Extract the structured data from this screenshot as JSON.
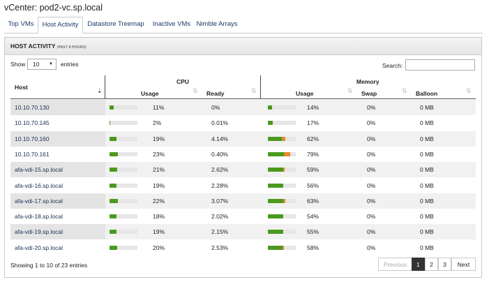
{
  "window": {
    "title": "vCenter: pod2-vc.sp.local"
  },
  "tabs": [
    {
      "label": "Top VMs",
      "active": false
    },
    {
      "label": "Host Activity",
      "active": true
    },
    {
      "label": "Datastore Treemap",
      "active": false
    },
    {
      "label": "Inactive VMs",
      "active": false
    },
    {
      "label": "Nimble Arrays",
      "active": false
    }
  ],
  "panel": {
    "title": "HOST ACTIVITY",
    "subtitle": "(PAST 8 HOURS)"
  },
  "controls": {
    "show_label": "Show",
    "page_size": "10",
    "entries_label": "entries",
    "search_label": "Search:",
    "search_value": ""
  },
  "columns": {
    "host": "Host",
    "cpu_group": "CPU",
    "memory_group": "Memory",
    "cpu_usage": "Usage",
    "cpu_ready": "Ready",
    "mem_usage": "Usage",
    "swap": "Swap",
    "balloon": "Balloon"
  },
  "rows": [
    {
      "host": "10.10.70.130",
      "cpu_usage": "11%",
      "cpu_ready": "0%",
      "mem_usage": "14%",
      "swap": "0%",
      "balloon": "0 MB",
      "cpu_pct": 11,
      "mem_pct": 14,
      "mem_orange_pct": 0
    },
    {
      "host": "10.10.70.145",
      "cpu_usage": "2%",
      "cpu_ready": "0.01%",
      "mem_usage": "17%",
      "swap": "0%",
      "balloon": "0 MB",
      "cpu_pct": 2,
      "mem_pct": 17,
      "mem_orange_pct": 0
    },
    {
      "host": "10.10.70.160",
      "cpu_usage": "19%",
      "cpu_ready": "4.14%",
      "mem_usage": "62%",
      "swap": "0%",
      "balloon": "0 MB",
      "cpu_pct": 19,
      "mem_pct": 62,
      "mem_orange_pct": 18
    },
    {
      "host": "10.10.70.161",
      "cpu_usage": "23%",
      "cpu_ready": "0.40%",
      "mem_usage": "79%",
      "swap": "0%",
      "balloon": "0 MB",
      "cpu_pct": 23,
      "mem_pct": 79,
      "mem_orange_pct": 26
    },
    {
      "host": "afa-vdi-15.sp.local",
      "cpu_usage": "21%",
      "cpu_ready": "2.62%",
      "mem_usage": "59%",
      "swap": "0%",
      "balloon": "0 MB",
      "cpu_pct": 21,
      "mem_pct": 59,
      "mem_orange_pct": 8
    },
    {
      "host": "afa-vdi-16.sp.local",
      "cpu_usage": "19%",
      "cpu_ready": "2.28%",
      "mem_usage": "56%",
      "swap": "0%",
      "balloon": "0 MB",
      "cpu_pct": 19,
      "mem_pct": 56,
      "mem_orange_pct": 0
    },
    {
      "host": "afa-vdi-17.sp.local",
      "cpu_usage": "22%",
      "cpu_ready": "3.07%",
      "mem_usage": "63%",
      "swap": "0%",
      "balloon": "0 MB",
      "cpu_pct": 22,
      "mem_pct": 63,
      "mem_orange_pct": 12
    },
    {
      "host": "afa-vdi-18.sp.local",
      "cpu_usage": "18%",
      "cpu_ready": "2.02%",
      "mem_usage": "54%",
      "swap": "0%",
      "balloon": "0 MB",
      "cpu_pct": 18,
      "mem_pct": 54,
      "mem_orange_pct": 0
    },
    {
      "host": "afa-vdi-19.sp.local",
      "cpu_usage": "19%",
      "cpu_ready": "2.15%",
      "mem_usage": "55%",
      "swap": "0%",
      "balloon": "0 MB",
      "cpu_pct": 19,
      "mem_pct": 55,
      "mem_orange_pct": 0
    },
    {
      "host": "afa-vdi-20.sp.local",
      "cpu_usage": "20%",
      "cpu_ready": "2.53%",
      "mem_usage": "58%",
      "swap": "0%",
      "balloon": "0 MB",
      "cpu_pct": 20,
      "mem_pct": 58,
      "mem_orange_pct": 10
    }
  ],
  "footer": {
    "info": "Showing 1 to 10 of 23 entries"
  },
  "pagination": {
    "previous": "Previous",
    "pages": [
      "1",
      "2",
      "3"
    ],
    "current": "1",
    "next": "Next"
  },
  "colors": {
    "bar_green": "#4b9a1e",
    "bar_orange": "#e58a2c",
    "link": "#1a3b66"
  },
  "icons": {
    "sort": "sort-arrows-icon",
    "sort_active": "sort-desc-icon",
    "dropdown": "chevron-down-icon"
  }
}
